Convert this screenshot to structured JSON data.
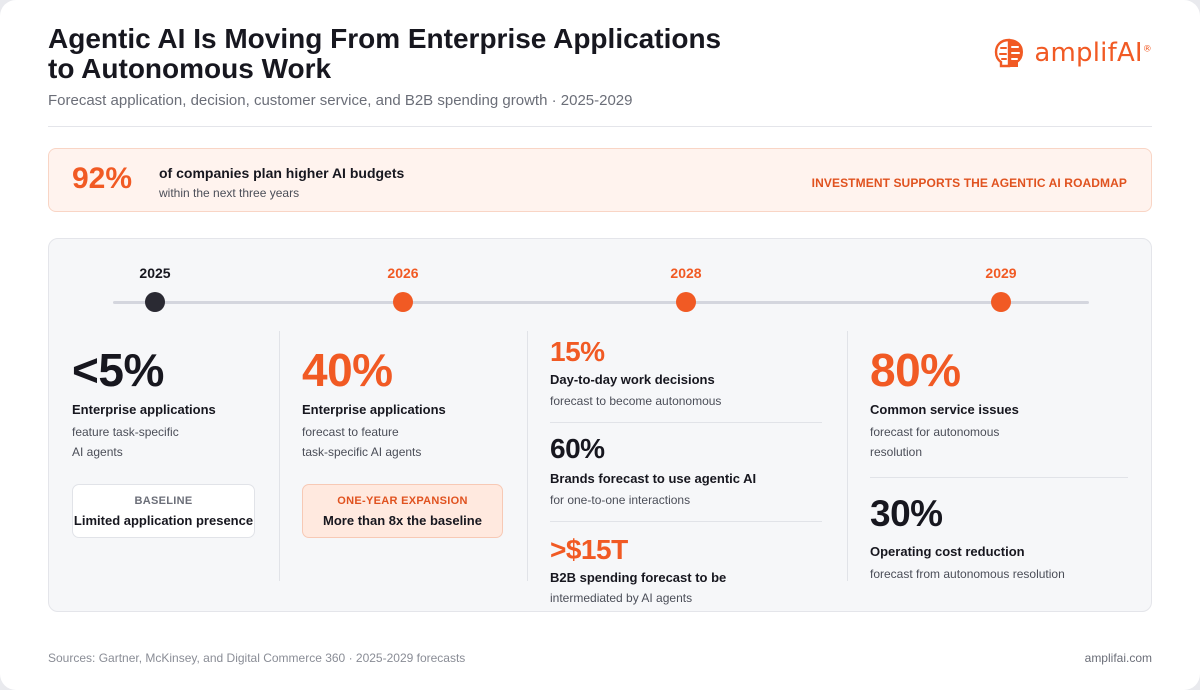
{
  "header": {
    "title_line1": "Agentic AI Is Moving From Enterprise Applications",
    "title_line2": "to Autonomous Work",
    "subtitle": "Forecast application, decision, customer service, and B2B spending growth · 2025-2029",
    "logo_text": "amplifAI",
    "logo_mark": "®"
  },
  "banner": {
    "percent": "92%",
    "main": "of companies plan higher AI budgets",
    "sub": "within the next three years",
    "right": "INVESTMENT SUPPORTS THE AGENTIC AI ROADMAP"
  },
  "timeline": {
    "years": [
      "2025",
      "2026",
      "2028",
      "2029"
    ]
  },
  "col2025": {
    "big": "<5%",
    "label": "Enterprise applications",
    "desc_line1": "feature task-specific",
    "desc_line2": "AI agents",
    "box_title": "BASELINE",
    "box_text": "Limited application presence"
  },
  "col2026": {
    "big": "40%",
    "label": "Enterprise applications",
    "desc_line1": "forecast to feature",
    "desc_line2": "task-specific AI agents",
    "box_title": "ONE-YEAR EXPANSION",
    "box_text": "More than 8x the baseline"
  },
  "col2028": [
    {
      "big": "15%",
      "label": "Day-to-day work decisions",
      "desc": "forecast to become autonomous"
    },
    {
      "big": "60%",
      "label": "Brands forecast to use agentic AI",
      "desc": "for one-to-one interactions"
    },
    {
      "big": ">$15T",
      "label": "B2B spending forecast to be",
      "desc": "intermediated by AI agents"
    }
  ],
  "col2029": [
    {
      "big": "80%",
      "label": "Common service issues",
      "desc_line1": "forecast for autonomous",
      "desc_line2": "resolution"
    },
    {
      "big": "30%",
      "label": "Operating cost reduction",
      "desc_line1": "forecast from autonomous resolution",
      "desc_line2": ""
    }
  ],
  "footer": {
    "sources": "Sources: Gartner, McKinsey, and Digital Commerce 360 · 2025-2029 forecasts",
    "site": "amplifai.com"
  },
  "colors": {
    "accent": "#f15a24",
    "dark": "#17171f",
    "muted": "#4b4e58"
  }
}
